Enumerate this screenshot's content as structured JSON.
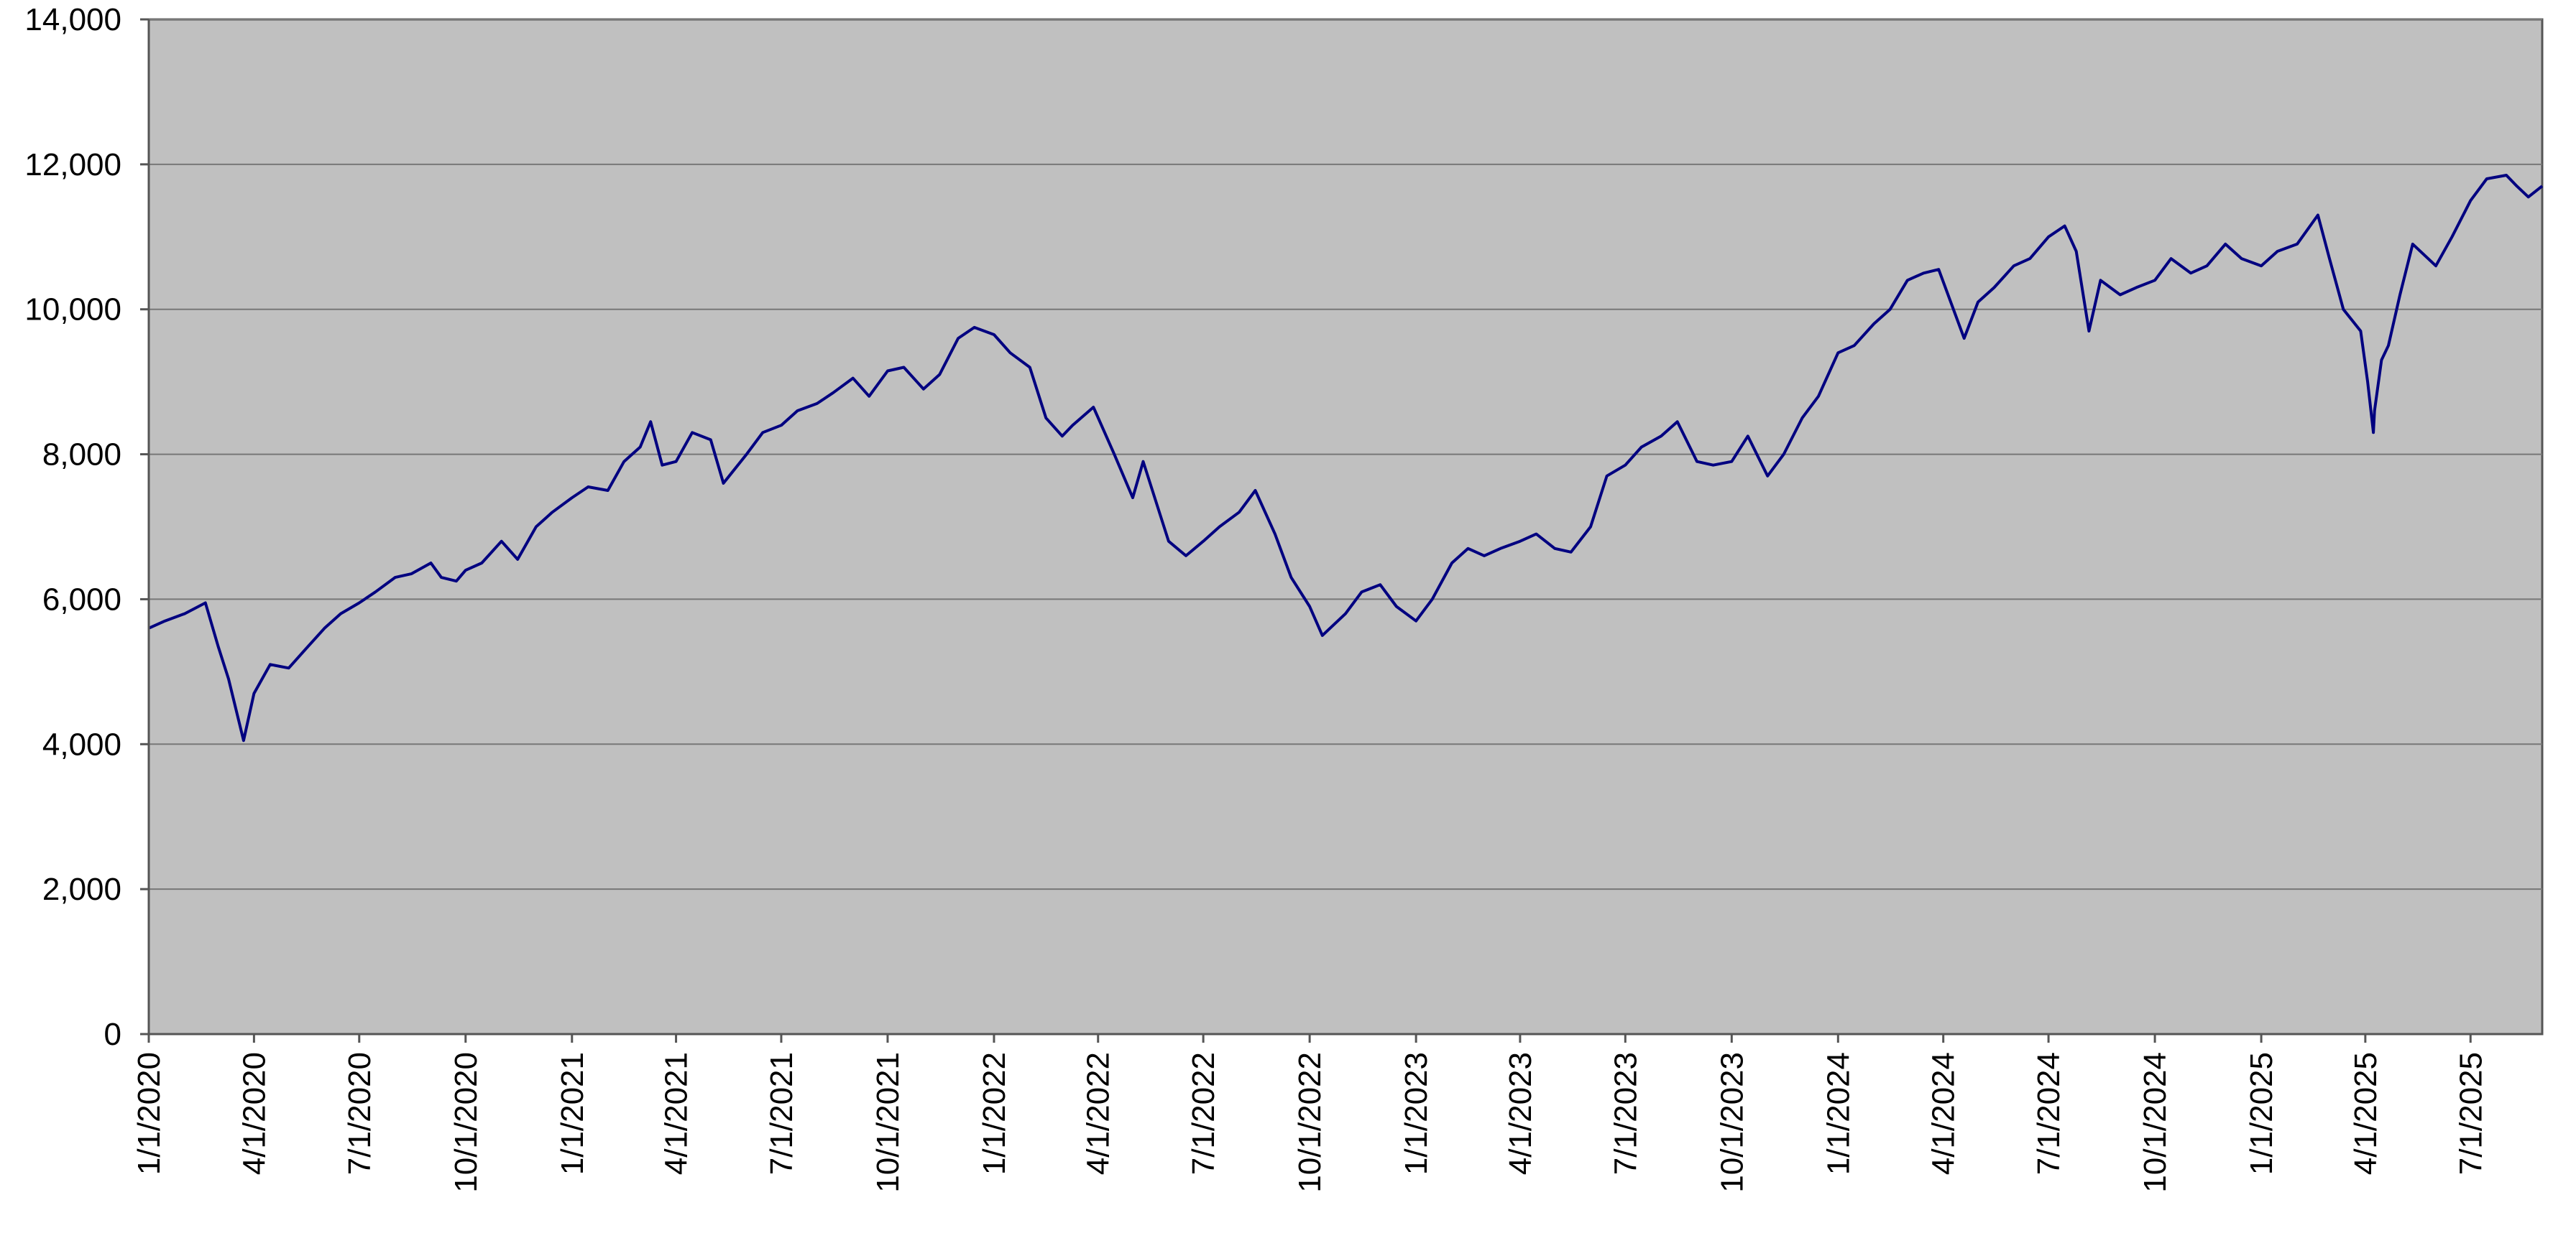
{
  "chart_data": {
    "type": "line",
    "title": "",
    "xlabel": "",
    "ylabel": "",
    "xlim": [
      "1/1/2020",
      "9/1/2025"
    ],
    "ylim": [
      0,
      14000
    ],
    "yticks": [
      0,
      2000,
      4000,
      6000,
      8000,
      10000,
      12000,
      14000
    ],
    "yticklabels": [
      "0",
      "2,000",
      "4,000",
      "6,000",
      "8,000",
      "10,000",
      "12,000",
      "14,000"
    ],
    "xticklabels": [
      "1/1/2020",
      "4/1/2020",
      "7/1/2020",
      "10/1/2020",
      "1/1/2021",
      "4/1/2021",
      "7/1/2021",
      "10/1/2021",
      "1/1/2022",
      "4/1/2022",
      "7/1/2022",
      "10/1/2022",
      "1/1/2023",
      "4/1/2023",
      "7/1/2023",
      "10/1/2023",
      "1/1/2024",
      "4/1/2024",
      "7/1/2024",
      "10/1/2024",
      "1/1/2025",
      "4/1/2025",
      "7/1/2025"
    ],
    "grid": true,
    "legend": "none",
    "plot_background": "#c0c0c0",
    "line_color": "#000080",
    "series": [
      {
        "x": [
          "1/1/2020",
          "1/15/2020",
          "2/1/2020",
          "2/19/2020",
          "3/1/2020",
          "3/10/2020",
          "3/23/2020",
          "4/1/2020",
          "4/15/2020",
          "5/1/2020",
          "5/15/2020",
          "6/1/2020",
          "6/15/2020",
          "7/1/2020",
          "7/15/2020",
          "8/1/2020",
          "8/15/2020",
          "9/1/2020",
          "9/10/2020",
          "9/23/2020",
          "10/1/2020",
          "10/15/2020",
          "11/1/2020",
          "11/15/2020",
          "12/1/2020",
          "12/15/2020",
          "1/1/2021",
          "1/15/2021",
          "2/1/2021",
          "2/15/2021",
          "3/1/2021",
          "3/10/2021",
          "3/20/2021",
          "4/1/2021",
          "4/15/2021",
          "5/1/2021",
          "5/12/2021",
          "6/1/2021",
          "6/15/2021",
          "7/1/2021",
          "7/15/2021",
          "8/1/2021",
          "8/15/2021",
          "9/1/2021",
          "9/15/2021",
          "10/1/2021",
          "10/15/2021",
          "11/1/2021",
          "11/15/2021",
          "12/1/2021",
          "12/15/2021",
          "1/1/2022",
          "1/15/2022",
          "2/1/2022",
          "2/15/2022",
          "3/1/2022",
          "3/10/2022",
          "3/28/2022",
          "4/15/2022",
          "5/1/2022",
          "5/10/2022",
          "6/1/2022",
          "6/16/2022",
          "7/1/2022",
          "7/15/2022",
          "8/1/2022",
          "8/15/2022",
          "9/1/2022",
          "9/15/2022",
          "10/1/2022",
          "10/12/2022",
          "11/1/2022",
          "11/15/2022",
          "12/1/2022",
          "12/15/2022",
          "1/1/2023",
          "1/15/2023",
          "2/1/2023",
          "2/15/2023",
          "3/1/2023",
          "3/15/2023",
          "4/1/2023",
          "4/15/2023",
          "5/1/2023",
          "5/15/2023",
          "6/1/2023",
          "6/15/2023",
          "7/1/2023",
          "7/15/2023",
          "8/1/2023",
          "8/15/2023",
          "9/1/2023",
          "9/15/2023",
          "10/1/2023",
          "10/15/2023",
          "11/1/2023",
          "11/15/2023",
          "12/1/2023",
          "12/15/2023",
          "1/1/2024",
          "1/15/2024",
          "2/1/2024",
          "2/15/2024",
          "3/1/2024",
          "3/15/2024",
          "3/28/2024",
          "4/19/2024",
          "5/1/2024",
          "5/15/2024",
          "6/1/2024",
          "6/15/2024",
          "7/1/2024",
          "7/15/2024",
          "7/25/2024",
          "8/5/2024",
          "8/15/2024",
          "9/1/2024",
          "9/15/2024",
          "10/1/2024",
          "10/15/2024",
          "11/1/2024",
          "11/15/2024",
          "12/1/2024",
          "12/15/2024",
          "1/1/2025",
          "1/15/2025",
          "2/1/2025",
          "2/19/2025",
          "3/1/2025",
          "3/13/2025",
          "3/28/2025",
          "4/3/2025",
          "4/8/2025",
          "4/9/2025",
          "4/15/2025",
          "4/21/2025",
          "5/1/2025",
          "5/12/2025",
          "6/1/2025",
          "6/15/2025",
          "7/1/2025",
          "7/15/2025",
          "8/1/2025",
          "8/10/2025",
          "8/20/2025",
          "9/1/2025"
        ],
        "values": [
          5600,
          5700,
          5800,
          5950,
          5350,
          4900,
          4050,
          4700,
          5100,
          5050,
          5300,
          5600,
          5800,
          5950,
          6100,
          6300,
          6350,
          6500,
          6300,
          6250,
          6400,
          6500,
          6800,
          6550,
          7000,
          7200,
          7400,
          7550,
          7500,
          7900,
          8100,
          8450,
          7850,
          7900,
          8300,
          8200,
          7600,
          8000,
          8300,
          8400,
          8600,
          8700,
          8850,
          9050,
          8800,
          9150,
          9200,
          8900,
          9100,
          9600,
          9750,
          9650,
          9400,
          9200,
          8500,
          8250,
          8400,
          8650,
          8000,
          7400,
          7900,
          6800,
          6600,
          6800,
          7000,
          7200,
          7500,
          6900,
          6300,
          5900,
          5500,
          5800,
          6100,
          6200,
          5900,
          5700,
          6000,
          6500,
          6700,
          6600,
          6700,
          6800,
          6900,
          6700,
          6650,
          7000,
          7700,
          7850,
          8100,
          8250,
          8450,
          7900,
          7850,
          7900,
          8250,
          7700,
          8000,
          8500,
          8800,
          9400,
          9500,
          9800,
          10000,
          10400,
          10500,
          10550,
          9600,
          10100,
          10300,
          10600,
          10700,
          11000,
          11150,
          10800,
          9700,
          10400,
          10200,
          10300,
          10400,
          10700,
          10500,
          10600,
          10900,
          10700,
          10600,
          10800,
          10900,
          11300,
          10700,
          10000,
          9700,
          9000,
          8300,
          8600,
          9300,
          9500,
          10200,
          10900,
          10600,
          11000,
          11500,
          11800,
          11850,
          11700,
          11550,
          11700
        ]
      }
    ]
  }
}
